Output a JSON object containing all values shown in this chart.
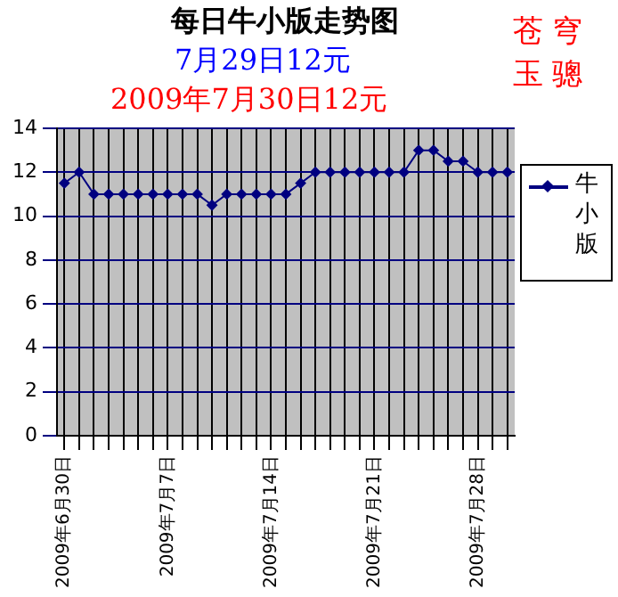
{
  "chart_data": {
    "type": "line",
    "title": "每日牛小版走势图",
    "subtitle": "7月29日12元",
    "annotations": [
      "2009年7月30日12元",
      "苍穹玉骢"
    ],
    "categories": [
      "2009年6月30日",
      null,
      null,
      null,
      null,
      null,
      null,
      "2009年7月7日",
      null,
      null,
      null,
      null,
      null,
      null,
      "2009年7月14日",
      null,
      null,
      null,
      null,
      null,
      null,
      "2009年7月21日",
      null,
      null,
      null,
      null,
      null,
      null,
      "2009年7月28日",
      null,
      null
    ],
    "series": [
      {
        "name": "牛小版",
        "color": "#000080",
        "values": [
          11.5,
          12,
          11,
          11,
          11,
          11,
          11,
          11,
          11,
          11,
          10.5,
          11,
          11,
          11,
          11,
          11,
          11.5,
          12,
          12,
          12,
          12,
          12,
          12,
          12,
          13,
          13,
          12.5,
          12.5,
          12,
          12,
          12
        ]
      }
    ],
    "ylim": [
      0,
      14
    ],
    "yticks": [
      0,
      2,
      4,
      6,
      8,
      10,
      12,
      14
    ],
    "grid": true,
    "legend": "right",
    "marker": "diamond",
    "line_style": "solid"
  }
}
